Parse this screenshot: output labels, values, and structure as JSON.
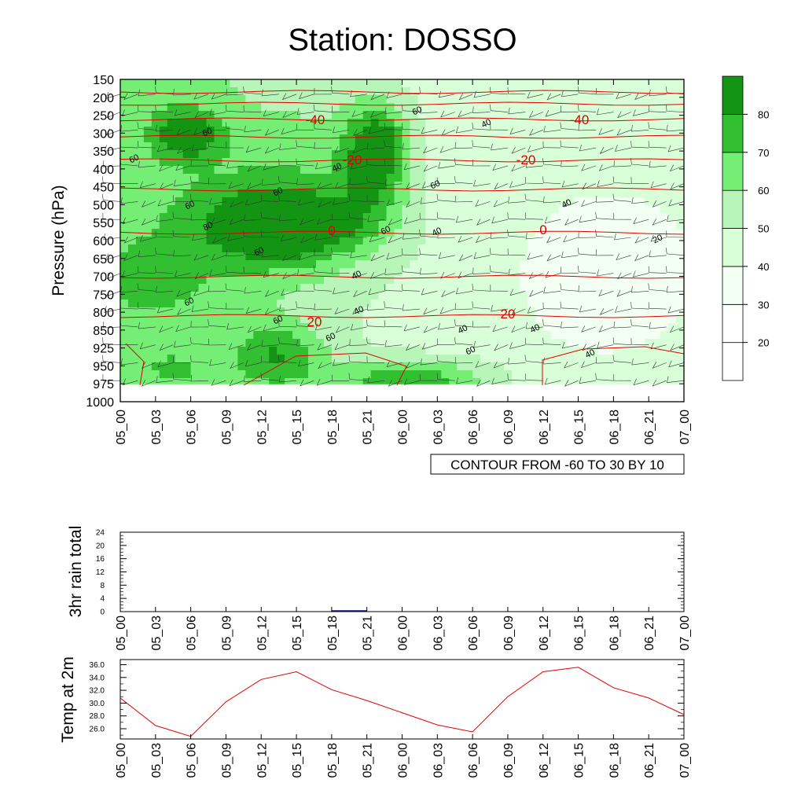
{
  "title": "Station: DOSSO",
  "chart_data": [
    {
      "type": "heatmap",
      "ylabel": "Pressure (hPa)",
      "y_ticks": [
        "150",
        "200",
        "250",
        "300",
        "350",
        "400",
        "450",
        "500",
        "550",
        "600",
        "650",
        "700",
        "750",
        "800",
        "850",
        "925",
        "950",
        "975",
        "1000"
      ],
      "x_ticks": [
        "05_00",
        "05_03",
        "05_06",
        "05_09",
        "05_12",
        "05_15",
        "05_18",
        "05_21",
        "06_00",
        "06_03",
        "06_06",
        "06_09",
        "06_12",
        "06_15",
        "06_18",
        "06_21",
        "07_00"
      ],
      "colorbar": {
        "ticks": [
          "20",
          "30",
          "40",
          "50",
          "60",
          "70",
          "80"
        ],
        "colors": [
          "#ffffff",
          "#f2fff2",
          "#d8ffd8",
          "#b8f5b8",
          "#75ee75",
          "#32c032",
          "#139413"
        ]
      },
      "contour_labels": [
        "60",
        "60",
        "80",
        "60",
        "60",
        "60",
        "60",
        "60",
        "60",
        "40",
        "60",
        "60",
        "40",
        "40",
        "40",
        "40",
        "40",
        "60",
        "40",
        "40",
        "40",
        "20",
        "60"
      ],
      "temperature_labels": [
        "-40",
        "-40",
        "-20",
        "-20",
        "0",
        "0",
        "-20",
        "-20"
      ],
      "info_box": "CONTOUR FROM -60 TO 30 BY 10"
    },
    {
      "type": "bar",
      "ylabel": "3hr rain total",
      "y_ticks": [
        "24",
        "20",
        "16",
        "12",
        "8",
        "4",
        "0"
      ],
      "x_ticks": [
        "05_00",
        "05_03",
        "05_06",
        "05_09",
        "05_12",
        "05_15",
        "05_18",
        "05_21",
        "06_00",
        "06_03",
        "06_06",
        "06_09",
        "06_12",
        "06_15",
        "06_18",
        "06_21",
        "07_00"
      ],
      "values": [
        0,
        0,
        0,
        0,
        0,
        0,
        0.4,
        0,
        0,
        0,
        0,
        0,
        0,
        0,
        0,
        0
      ],
      "ylim": [
        0,
        24
      ],
      "color": "#000080"
    },
    {
      "type": "line",
      "ylabel": "Temp at 2m",
      "y_ticks": [
        "36.0",
        "34.0",
        "32.0",
        "30.0",
        "28.0",
        "26.0"
      ],
      "x_ticks": [
        "05_00",
        "05_03",
        "05_06",
        "05_09",
        "05_12",
        "05_15",
        "05_18",
        "05_21",
        "06_00",
        "06_03",
        "06_06",
        "06_09",
        "06_12",
        "06_15",
        "06_18",
        "06_21",
        "07_00"
      ],
      "values": [
        30.8,
        26.5,
        24.8,
        30.2,
        33.7,
        34.9,
        32.1,
        30.4,
        28.5,
        26.6,
        25.5,
        31.0,
        34.9,
        35.6,
        32.4,
        30.8,
        28.2
      ],
      "ylim": [
        24.4,
        36.8
      ],
      "color": "#e00000"
    }
  ]
}
